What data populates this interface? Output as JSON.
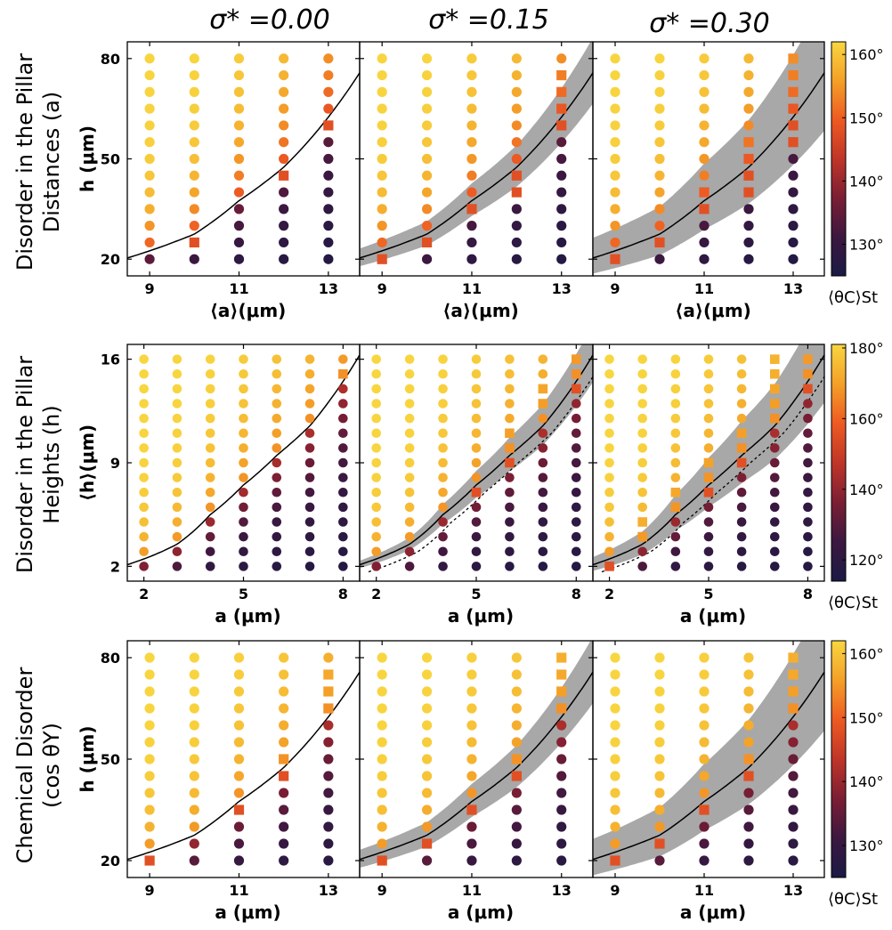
{
  "column_titles": [
    "σ* =0.00",
    "σ* =0.15",
    "σ* =0.30"
  ],
  "row_titles": [
    [
      "Disorder in the Pillar",
      "Distances (a)"
    ],
    [
      "Disorder in the Pillar",
      "Heights (h)"
    ],
    [
      "Chemical Disorder",
      "(cos θY)"
    ]
  ],
  "colorbars": [
    {
      "label": "⟨θC⟩St",
      "ticks": [
        "130°",
        "140°",
        "150°",
        "160°"
      ],
      "range": [
        125,
        162
      ]
    },
    {
      "label": "⟨θC⟩St",
      "ticks": [
        "120°",
        "140°",
        "160°",
        "180°"
      ],
      "range": [
        114,
        181
      ]
    },
    {
      "label": "⟨θC⟩St",
      "ticks": [
        "130°",
        "140°",
        "150°",
        "160°"
      ],
      "range": [
        125,
        162
      ]
    }
  ],
  "colormap": [
    "#1a1a45",
    "#3c1840",
    "#7b1e34",
    "#c03528",
    "#ee5a22",
    "#f4a028",
    "#f8d640"
  ],
  "chart_data": [
    {
      "type": "scatter",
      "panel": "row1-col1",
      "xlabel": "⟨a⟩(μm)",
      "ylabel": "h (μm)",
      "xticks": [
        9,
        11,
        13
      ],
      "yticks": [
        20,
        50,
        80
      ],
      "xlim": [
        8.5,
        13.7
      ],
      "ylim": [
        15,
        85
      ],
      "columns_x": [
        9,
        10,
        11,
        12,
        13
      ],
      "h_values": [
        20,
        25,
        30,
        35,
        40,
        45,
        50,
        55,
        60,
        65,
        70,
        75,
        80
      ],
      "transition_h": [
        22.5,
        27.5,
        37.5,
        47.5,
        62.5
      ],
      "square_markers": [
        [
          10,
          25
        ],
        [
          12,
          45
        ],
        [
          13,
          60
        ]
      ],
      "band": false
    },
    {
      "type": "scatter",
      "panel": "row1-col2",
      "xlabel": "⟨a⟩(μm)",
      "ylabel": "h (μm)",
      "xticks": [
        9,
        11,
        13
      ],
      "yticks": [
        20,
        50,
        80
      ],
      "xlim": [
        8.5,
        13.7
      ],
      "ylim": [
        15,
        85
      ],
      "columns_x": [
        9,
        10,
        11,
        12,
        13
      ],
      "h_values": [
        20,
        25,
        30,
        35,
        40,
        45,
        50,
        55,
        60,
        65,
        70,
        75,
        80
      ],
      "transition_h": [
        22.5,
        27.5,
        37.5,
        47.5,
        62.5
      ],
      "square_markers": [
        [
          9,
          20
        ],
        [
          10,
          25
        ],
        [
          11,
          35
        ],
        [
          12,
          40
        ],
        [
          12,
          45
        ],
        [
          13,
          60
        ],
        [
          13,
          65
        ],
        [
          13,
          70
        ],
        [
          13,
          75
        ]
      ],
      "band": true,
      "band_halfwidth": 0.13
    },
    {
      "type": "scatter",
      "panel": "row1-col3",
      "xlabel": "⟨a⟩(μm)",
      "ylabel": "h (μm)",
      "xticks": [
        9,
        11,
        13
      ],
      "yticks": [
        20,
        50,
        80
      ],
      "xlim": [
        8.5,
        13.7
      ],
      "ylim": [
        15,
        85
      ],
      "columns_x": [
        9,
        10,
        11,
        12,
        13
      ],
      "h_values": [
        20,
        25,
        30,
        35,
        40,
        45,
        50,
        55,
        60,
        65,
        70,
        75,
        80
      ],
      "transition_h": [
        22.5,
        27.5,
        37.5,
        47.5,
        62.5
      ],
      "square_markers": [
        [
          9,
          20
        ],
        [
          10,
          25
        ],
        [
          11,
          35
        ],
        [
          11,
          40
        ],
        [
          12,
          40
        ],
        [
          12,
          45
        ],
        [
          12,
          50
        ],
        [
          12,
          55
        ],
        [
          13,
          55
        ],
        [
          13,
          60
        ],
        [
          13,
          65
        ],
        [
          13,
          70
        ],
        [
          13,
          75
        ],
        [
          13,
          80
        ]
      ],
      "band": true,
      "band_halfwidth": 0.26
    },
    {
      "type": "scatter",
      "panel": "row2-col1",
      "xlabel": "a (μm)",
      "ylabel": "⟨h⟩(μm)",
      "xticks": [
        2,
        5,
        8
      ],
      "yticks": [
        2,
        9,
        16
      ],
      "xlim": [
        1.5,
        8.5
      ],
      "ylim": [
        1,
        17
      ],
      "columns_x": [
        2,
        3,
        4,
        5,
        6,
        7,
        8
      ],
      "h_values": [
        2,
        3,
        4,
        5,
        6,
        7,
        8,
        9,
        10,
        11,
        12,
        13,
        14,
        15,
        16
      ],
      "transition_h": [
        2.5,
        3.5,
        5.5,
        7.5,
        9.5,
        11.5,
        14.5
      ],
      "square_markers": [
        [
          8,
          15
        ]
      ],
      "band": false
    },
    {
      "type": "scatter",
      "panel": "row2-col2",
      "xlabel": "a (μm)",
      "ylabel": "⟨h⟩(μm)",
      "xticks": [
        2,
        5,
        8
      ],
      "yticks": [
        2,
        9,
        16
      ],
      "xlim": [
        1.5,
        8.5
      ],
      "ylim": [
        1,
        17
      ],
      "columns_x": [
        2,
        3,
        4,
        5,
        6,
        7,
        8
      ],
      "h_values": [
        2,
        3,
        4,
        5,
        6,
        7,
        8,
        9,
        10,
        11,
        12,
        13,
        14,
        15,
        16
      ],
      "transition_h": [
        2.5,
        3.5,
        5.5,
        7.5,
        9.5,
        11.5,
        14.5
      ],
      "square_markers": [
        [
          5,
          7
        ],
        [
          6,
          9
        ],
        [
          6,
          10
        ],
        [
          6,
          11
        ],
        [
          7,
          13
        ],
        [
          7,
          14
        ],
        [
          8,
          14
        ],
        [
          8,
          15
        ],
        [
          8,
          16
        ]
      ],
      "band": true,
      "band_halfwidth": 0.12
    },
    {
      "type": "scatter",
      "panel": "row2-col3",
      "xlabel": "a (μm)",
      "ylabel": "⟨h⟩(μm)",
      "xticks": [
        2,
        5,
        8
      ],
      "yticks": [
        2,
        9,
        16
      ],
      "xlim": [
        1.5,
        8.5
      ],
      "ylim": [
        1,
        17
      ],
      "columns_x": [
        2,
        3,
        4,
        5,
        6,
        7,
        8
      ],
      "h_values": [
        2,
        3,
        4,
        5,
        6,
        7,
        8,
        9,
        10,
        11,
        12,
        13,
        14,
        15,
        16
      ],
      "transition_h": [
        2.5,
        3.5,
        5.5,
        7.5,
        9.5,
        11.5,
        14.5
      ],
      "square_markers": [
        [
          2,
          2
        ],
        [
          3,
          4
        ],
        [
          3,
          5
        ],
        [
          4,
          6
        ],
        [
          4,
          7
        ],
        [
          5,
          7
        ],
        [
          5,
          8
        ],
        [
          5,
          9
        ],
        [
          6,
          9
        ],
        [
          6,
          10
        ],
        [
          6,
          11
        ],
        [
          7,
          12
        ],
        [
          7,
          13
        ],
        [
          7,
          14
        ],
        [
          7,
          15
        ],
        [
          7,
          16
        ],
        [
          8,
          14
        ],
        [
          8,
          15
        ],
        [
          8,
          16
        ]
      ],
      "band": true,
      "band_halfwidth": 0.22
    },
    {
      "type": "scatter",
      "panel": "row3-col1",
      "xlabel": "a (μm)",
      "ylabel": "h (μm)",
      "xticks": [
        9,
        11,
        13
      ],
      "yticks": [
        20,
        50,
        80
      ],
      "xlim": [
        8.5,
        13.7
      ],
      "ylim": [
        15,
        85
      ],
      "columns_x": [
        9,
        10,
        11,
        12,
        13
      ],
      "h_values": [
        20,
        25,
        30,
        35,
        40,
        45,
        50,
        55,
        60,
        65,
        70,
        75,
        80
      ],
      "transition_h": [
        22.5,
        27.5,
        37.5,
        47.5,
        62.5
      ],
      "square_markers": [
        [
          9,
          20
        ],
        [
          11,
          35
        ],
        [
          12,
          45
        ],
        [
          12,
          50
        ],
        [
          13,
          65
        ],
        [
          13,
          70
        ],
        [
          13,
          75
        ]
      ],
      "band": false
    },
    {
      "type": "scatter",
      "panel": "row3-col2",
      "xlabel": "a (μm)",
      "ylabel": "h (μm)",
      "xticks": [
        9,
        11,
        13
      ],
      "yticks": [
        20,
        50,
        80
      ],
      "xlim": [
        8.5,
        13.7
      ],
      "ylim": [
        15,
        85
      ],
      "columns_x": [
        9,
        10,
        11,
        12,
        13
      ],
      "h_values": [
        20,
        25,
        30,
        35,
        40,
        45,
        50,
        55,
        60,
        65,
        70,
        75,
        80
      ],
      "transition_h": [
        22.5,
        27.5,
        37.5,
        47.5,
        62.5
      ],
      "square_markers": [
        [
          9,
          20
        ],
        [
          10,
          25
        ],
        [
          11,
          35
        ],
        [
          12,
          45
        ],
        [
          12,
          50
        ],
        [
          13,
          65
        ],
        [
          13,
          70
        ],
        [
          13,
          75
        ],
        [
          13,
          80
        ]
      ],
      "band": true,
      "band_halfwidth": 0.13
    },
    {
      "type": "scatter",
      "panel": "row3-col3",
      "xlabel": "a (μm)",
      "ylabel": "h (μm)",
      "xticks": [
        9,
        11,
        13
      ],
      "yticks": [
        20,
        50,
        80
      ],
      "xlim": [
        8.5,
        13.7
      ],
      "ylim": [
        15,
        85
      ],
      "columns_x": [
        9,
        10,
        11,
        12,
        13
      ],
      "h_values": [
        20,
        25,
        30,
        35,
        40,
        45,
        50,
        55,
        60,
        65,
        70,
        75,
        80
      ],
      "transition_h": [
        22.5,
        27.5,
        37.5,
        47.5,
        62.5
      ],
      "square_markers": [
        [
          9,
          20
        ],
        [
          10,
          25
        ],
        [
          11,
          35
        ],
        [
          12,
          45
        ],
        [
          12,
          50
        ],
        [
          13,
          65
        ],
        [
          13,
          70
        ],
        [
          13,
          75
        ],
        [
          13,
          80
        ]
      ],
      "band": true,
      "band_halfwidth": 0.26
    }
  ]
}
